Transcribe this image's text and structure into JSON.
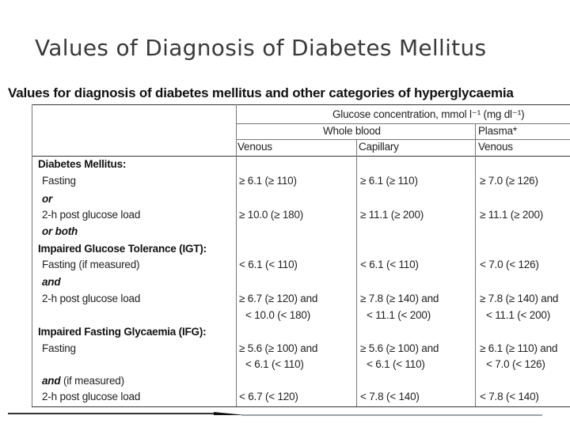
{
  "slide_title": "Values of Diagnosis of Diabetes Mellitus",
  "table_heading": "Values for diagnosis of diabetes mellitus and other categories of hyperglycaemia",
  "header": {
    "glucose_concentration": "Glucose concentration, mmol l⁻¹ (mg dl⁻¹)",
    "whole_blood": "Whole blood",
    "plasma": "Plasma*",
    "venous": "Venous",
    "capillary": "Capillary",
    "plasma_venous": "Venous"
  },
  "rows": [
    {
      "label": "Diabetes Mellitus:",
      "kind": "section",
      "v": "",
      "c": "",
      "p": ""
    },
    {
      "label": "Fasting",
      "kind": "item",
      "v": "≥ 6.1 (≥ 110)",
      "c": "≥ 6.1 (≥ 110)",
      "p": "≥ 7.0 (≥ 126)"
    },
    {
      "label": "or",
      "kind": "conj",
      "v": "",
      "c": "",
      "p": ""
    },
    {
      "label": "2-h post glucose load",
      "kind": "item",
      "v": "≥ 10.0 (≥ 180)",
      "c": "≥ 11.1 (≥ 200)",
      "p": "≥ 11.1 (≥ 200)"
    },
    {
      "label": "or both",
      "kind": "conj",
      "v": "",
      "c": "",
      "p": ""
    },
    {
      "label": "Impaired Glucose Tolerance (IGT):",
      "kind": "section",
      "v": "",
      "c": "",
      "p": ""
    },
    {
      "label": "Fasting (if measured)",
      "kind": "item",
      "v": "< 6.1 (< 110)",
      "c": "< 6.1 (< 110)",
      "p": "< 7.0 (< 126)"
    },
    {
      "label": "and",
      "kind": "conj",
      "v": "",
      "c": "",
      "p": ""
    },
    {
      "label": "2-h post glucose load",
      "kind": "item",
      "v": "≥ 6.7 (≥ 120) and",
      "c": "≥ 7.8 (≥ 140) and",
      "p": "≥ 7.8 (≥ 140) and"
    },
    {
      "label": "",
      "kind": "item",
      "v": "< 10.0 (< 180)",
      "c": "< 11.1 (< 200)",
      "p": "< 11.1 (< 200)"
    },
    {
      "label": "Impaired Fasting Glycaemia (IFG):",
      "kind": "section",
      "v": "",
      "c": "",
      "p": ""
    },
    {
      "label": "Fasting",
      "kind": "item",
      "v": "≥ 5.6 (≥ 100) and",
      "c": "≥ 5.6 (≥ 100) and",
      "p": "≥ 6.1 (≥ 110) and"
    },
    {
      "label": "",
      "kind": "item",
      "v": "< 6.1 (< 110)",
      "c": "< 6.1 (< 110)",
      "p": "< 7.0 (< 126)"
    },
    {
      "label": "and",
      "kind": "conj",
      "v": "",
      "c": "",
      "p": "",
      "suffix": " (if measured)"
    },
    {
      "label": "2-h post glucose load",
      "kind": "item",
      "v": "< 6.7 (< 120)",
      "c": "< 7.8 (< 140)",
      "p": "< 7.8 (< 140)"
    }
  ]
}
